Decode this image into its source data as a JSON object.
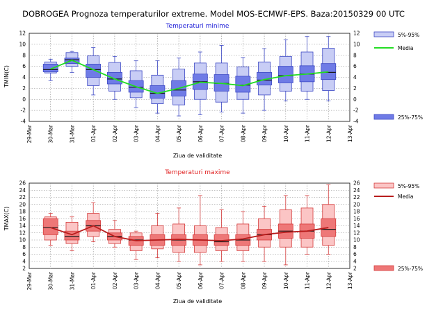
{
  "header": {
    "title": "DOBROGEA  Prognoza temperaturilor extreme.  Model MOS-ECMWF-EPS. Baza:20150329 00 UTC"
  },
  "chart_data": [
    {
      "type": "box",
      "title": "Temperaturi minime",
      "title_color": "#2323d8",
      "ylabel": "TMIN(C)",
      "xlabel": "Ziua de validitate",
      "ylim": [
        -4,
        12
      ],
      "y_ticks": [
        -4,
        -2,
        0,
        2,
        4,
        6,
        8,
        10,
        12
      ],
      "x_ticks": [
        "29-Mar",
        "30-Mar",
        "31-Mar",
        "01-Apr",
        "02-Apr",
        "03-Apr",
        "04-Apr",
        "05-Apr",
        "06-Apr",
        "07-Apr",
        "08-Apr",
        "09-Apr",
        "10-Apr",
        "11-Apr",
        "12-Apr",
        "13-Apr"
      ],
      "categories": [
        "30-Mar",
        "31-Mar",
        "01-Apr",
        "02-Apr",
        "03-Apr",
        "04-Apr",
        "05-Apr",
        "06-Apr",
        "07-Apr",
        "08-Apr",
        "09-Apr",
        "10-Apr",
        "11-Apr",
        "12-Apr"
      ],
      "p5": [
        4.8,
        6.0,
        2.5,
        1.5,
        0.3,
        -0.8,
        -1.0,
        0.0,
        -0.5,
        0.0,
        0.8,
        1.5,
        1.5,
        1.6
      ],
      "p25": [
        5.0,
        6.5,
        4.0,
        2.8,
        1.3,
        0.2,
        0.6,
        1.8,
        1.5,
        1.3,
        2.6,
        3.0,
        3.2,
        3.6
      ],
      "median": [
        5.4,
        7.2,
        5.4,
        3.7,
        2.2,
        1.1,
        1.7,
        3.2,
        2.9,
        2.6,
        3.5,
        4.3,
        4.6,
        4.9
      ],
      "p75": [
        6.4,
        7.5,
        6.4,
        4.9,
        3.4,
        2.5,
        3.4,
        4.6,
        4.5,
        4.2,
        4.9,
        6.0,
        6.1,
        6.5
      ],
      "p95": [
        6.8,
        8.5,
        7.9,
        6.7,
        5.2,
        4.4,
        5.5,
        6.6,
        6.6,
        5.9,
        6.8,
        7.8,
        8.6,
        9.3
      ],
      "wmin": [
        3.4,
        4.9,
        0.8,
        0.0,
        -1.5,
        -2.5,
        -3.0,
        -2.8,
        -2.3,
        -2.5,
        -2.0,
        -0.3,
        0.0,
        -0.3
      ],
      "wmax": [
        7.3,
        8.7,
        9.4,
        7.8,
        7.0,
        7.0,
        7.5,
        8.6,
        9.8,
        7.6,
        9.2,
        10.8,
        11.4,
        11.4
      ],
      "media": [
        5.5,
        7.1,
        5.4,
        3.7,
        2.3,
        1.1,
        2.0,
        3.1,
        2.9,
        2.5,
        3.6,
        4.3,
        4.6,
        5.0
      ],
      "colors": {
        "outer_fill": "#c8cdf5",
        "inner_fill": "#6f7be6",
        "stroke": "#3b47c4",
        "median": "#1a1a1a",
        "media_line": "#22dd22"
      },
      "legend": [
        "5%-95%",
        "Media",
        "25%-75%"
      ]
    },
    {
      "type": "box",
      "title": "Temperaturi maxime",
      "title_color": "#e02222",
      "ylabel": "TMAX(C)",
      "xlabel": "Ziua de validitate",
      "ylim": [
        2,
        26
      ],
      "y_ticks": [
        2,
        4,
        6,
        8,
        10,
        12,
        14,
        16,
        18,
        20,
        22,
        24,
        26
      ],
      "x_ticks": [
        "29-Mar",
        "30-Mar",
        "31-Mar",
        "01-Apr",
        "02-Apr",
        "03-Apr",
        "04-Apr",
        "05-Apr",
        "06-Apr",
        "07-Apr",
        "08-Apr",
        "09-Apr",
        "10-Apr",
        "11-Apr",
        "12-Apr",
        "13-Apr"
      ],
      "categories": [
        "30-Mar",
        "31-Mar",
        "01-Apr",
        "02-Apr",
        "03-Apr",
        "04-Apr",
        "05-Apr",
        "06-Apr",
        "07-Apr",
        "08-Apr",
        "09-Apr",
        "10-Apr",
        "11-Apr",
        "12-Apr"
      ],
      "p5": [
        10.0,
        9.0,
        11.0,
        9.0,
        7.0,
        7.5,
        6.5,
        6.5,
        7.0,
        7.0,
        8.0,
        8.0,
        8.0,
        8.5
      ],
      "p25": [
        11.5,
        10.0,
        12.5,
        10.0,
        8.5,
        8.5,
        8.5,
        8.5,
        8.5,
        8.5,
        10.0,
        10.5,
        10.5,
        11.0
      ],
      "median": [
        13.5,
        11.0,
        14.0,
        11.0,
        10.0,
        10.0,
        10.0,
        10.0,
        9.5,
        10.0,
        11.5,
        12.5,
        12.5,
        13.0
      ],
      "p75": [
        16.0,
        12.5,
        15.5,
        12.0,
        11.0,
        11.5,
        11.5,
        11.5,
        11.5,
        11.5,
        13.0,
        14.5,
        14.5,
        16.0
      ],
      "p95": [
        16.5,
        15.0,
        17.5,
        13.0,
        12.0,
        14.0,
        14.5,
        14.0,
        13.5,
        14.5,
        16.0,
        18.5,
        19.0,
        20.0
      ],
      "wmin": [
        8.5,
        7.0,
        9.5,
        8.0,
        4.5,
        5.0,
        4.0,
        3.0,
        4.0,
        4.0,
        4.0,
        3.0,
        6.0,
        6.0
      ],
      "wmax": [
        17.5,
        16.5,
        20.5,
        15.5,
        12.5,
        17.5,
        19.0,
        22.5,
        18.5,
        18.0,
        19.5,
        22.5,
        22.5,
        25.5
      ],
      "media": [
        13.5,
        11.5,
        14.0,
        11.0,
        9.8,
        10.0,
        10.2,
        10.0,
        9.8,
        10.3,
        11.5,
        12.2,
        12.5,
        13.5
      ],
      "colors": {
        "outer_fill": "#fbc5c5",
        "inner_fill": "#ee7777",
        "stroke": "#d43a3a",
        "median": "#1a1a1a",
        "media_line": "#b81c1c"
      },
      "legend": [
        "5%-95%",
        "Media",
        "25%-75%"
      ]
    }
  ]
}
